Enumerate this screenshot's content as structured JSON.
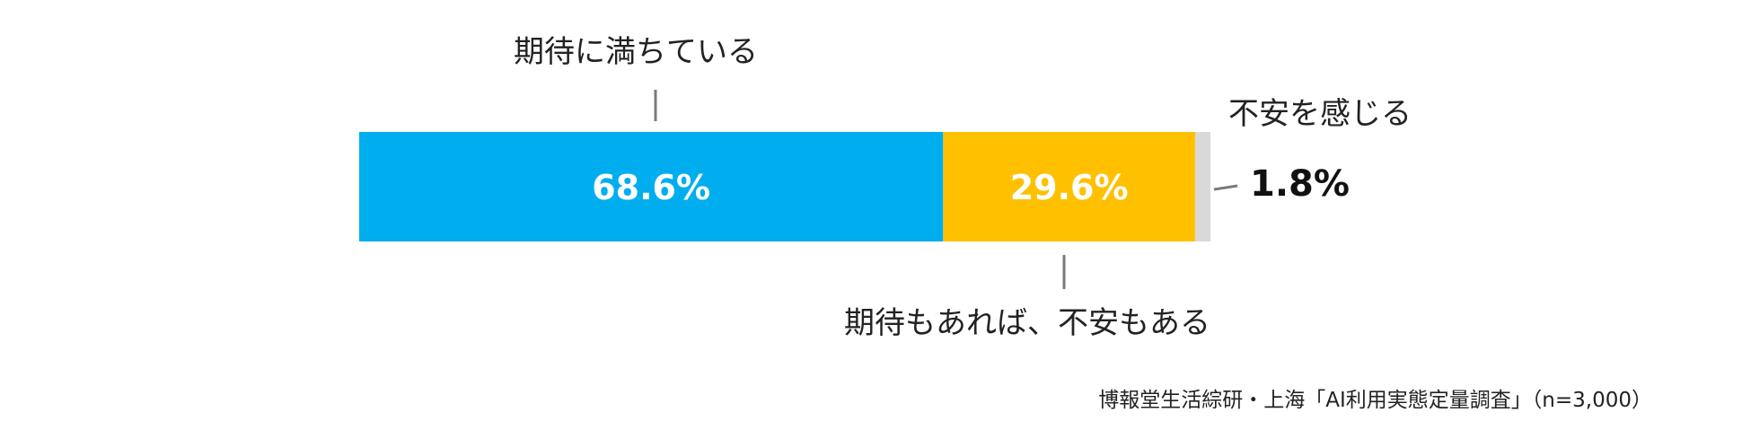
{
  "chart_data": {
    "type": "bar",
    "orientation": "horizontal",
    "stacked": true,
    "categories": [
      "期待に満ちている",
      "期待もあれば、不安もある",
      "不安を感じる"
    ],
    "values": [
      68.6,
      29.6,
      1.8
    ],
    "value_labels": [
      "68.6%",
      "29.6%",
      "1.8%"
    ],
    "colors": [
      "#00AEEF",
      "#FFC000",
      "#D9D9D9"
    ],
    "xlim": [
      0,
      100
    ],
    "grid": false,
    "legend": "none"
  },
  "source_note": "博報堂生活綜研・上海「AI利用実態定量調査」（n=3,000）"
}
